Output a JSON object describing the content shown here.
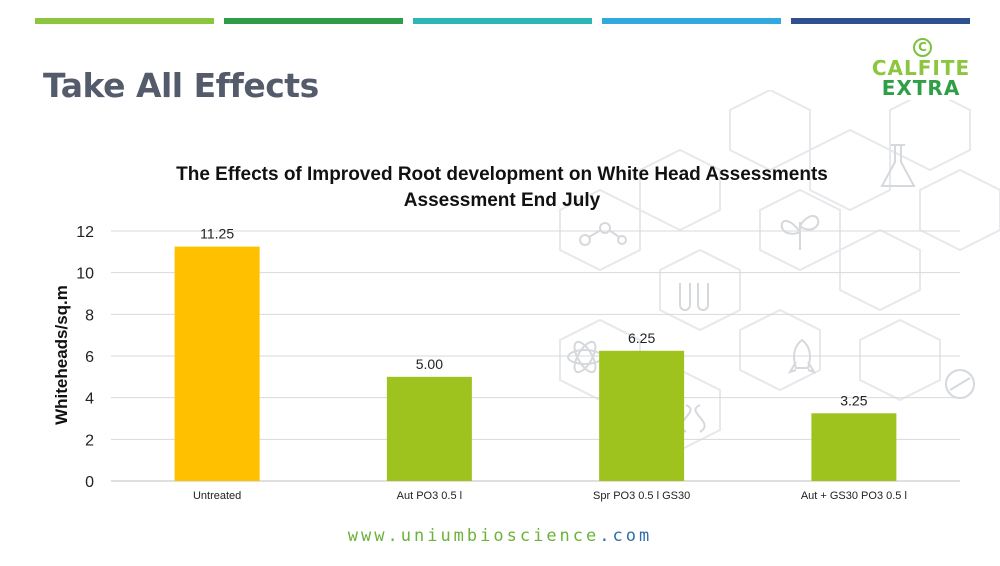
{
  "slide": {
    "title": "Take All Effects",
    "accent_bar_colors": [
      "#8cc63f",
      "#2e9c48",
      "#2cb7b5",
      "#31a9df",
      "#2f4f8f"
    ]
  },
  "logo": {
    "line1": "CALFITE",
    "line2": "EXTRA",
    "mark": "C",
    "colors": [
      "#8cc63f",
      "#2f9e46"
    ]
  },
  "footer": {
    "prefix": "www.",
    "brand": "uniumbioscience",
    "suffix": ".com"
  },
  "background_icons": [
    "molecule-icon",
    "flask-icon",
    "plant-icon",
    "test-tubes-icon",
    "atom-icon",
    "rocket-icon",
    "dna-icon",
    "bacteria-icon"
  ],
  "chart_data": {
    "type": "bar",
    "title": "The Effects of Improved Root development on White Head Assessments",
    "subtitle": "Assessment End July",
    "ylabel": "Whiteheads/sq.m",
    "xlabel": "",
    "categories": [
      "Untreated",
      "Aut PO3 0.5 l",
      "Spr PO3 0.5 l GS30",
      "Aut + GS30 PO3 0.5 l"
    ],
    "values": [
      11.25,
      5.0,
      6.25,
      3.25
    ],
    "data_labels": [
      "11.25",
      "5.00",
      "6.25",
      "3.25"
    ],
    "bar_colors": [
      "#ffc000",
      "#9ec31e",
      "#9ec31e",
      "#9ec31e"
    ],
    "ylim": [
      0,
      12
    ],
    "yticks": [
      0,
      2,
      4,
      6,
      8,
      10,
      12
    ],
    "grid": true,
    "legend": "none"
  }
}
